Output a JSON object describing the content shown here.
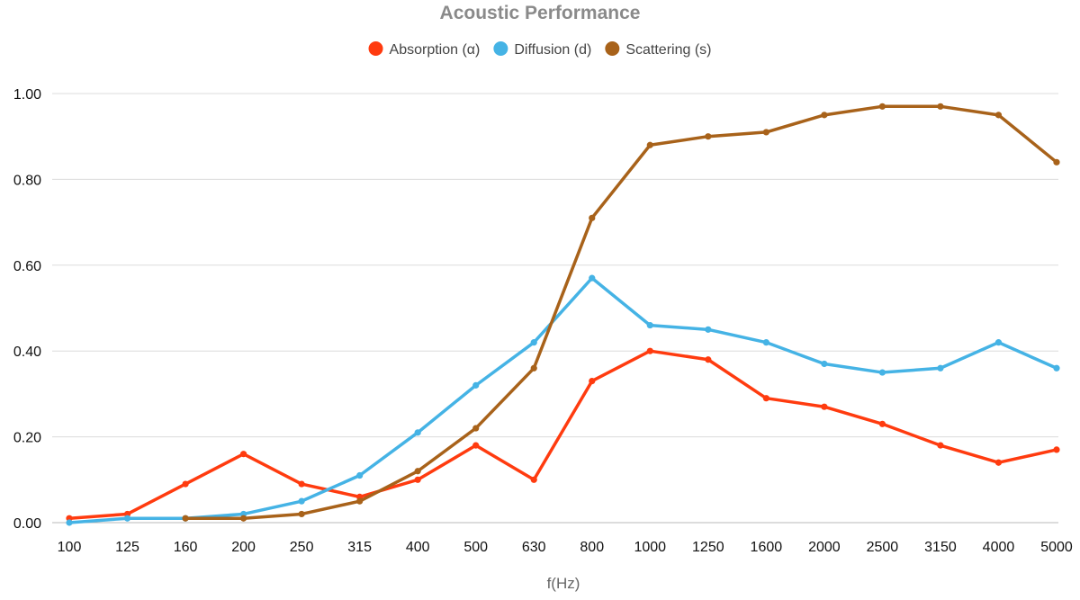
{
  "chart_data": {
    "type": "line",
    "title": "Acoustic Performance",
    "xlabel": "f(Hz)",
    "ylabel": "",
    "ylim": [
      0,
      1
    ],
    "yticks": [
      "0.00",
      "0.20",
      "0.40",
      "0.60",
      "0.80",
      "1.00"
    ],
    "grid": true,
    "legend_position": "top-center",
    "categories": [
      "100",
      "125",
      "160",
      "200",
      "250",
      "315",
      "400",
      "500",
      "630",
      "800",
      "1000",
      "1250",
      "1600",
      "2000",
      "2500",
      "3150",
      "4000",
      "5000"
    ],
    "series": [
      {
        "name": "Absorption (α)",
        "color": "#ff3b0f",
        "values": [
          0.01,
          0.02,
          0.09,
          0.16,
          0.09,
          0.06,
          0.1,
          0.18,
          0.1,
          0.33,
          0.4,
          0.38,
          0.29,
          0.27,
          0.23,
          0.18,
          0.14,
          0.17
        ]
      },
      {
        "name": "Diffusion (d)",
        "color": "#45b3e5",
        "values": [
          0.0,
          0.01,
          0.01,
          0.02,
          0.05,
          0.11,
          0.21,
          0.32,
          0.42,
          0.57,
          0.46,
          0.45,
          0.42,
          0.37,
          0.35,
          0.36,
          0.42,
          0.36
        ]
      },
      {
        "name": "Scattering (s)",
        "color": "#a8621a",
        "values": [
          null,
          null,
          0.01,
          0.01,
          0.02,
          0.05,
          0.12,
          0.22,
          0.36,
          0.71,
          0.88,
          0.9,
          0.91,
          0.95,
          0.97,
          0.97,
          0.95,
          0.84
        ]
      }
    ]
  }
}
